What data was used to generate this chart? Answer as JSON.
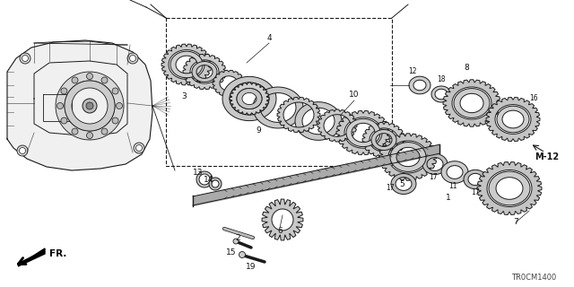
{
  "bg_color": "#ffffff",
  "diagram_code": "TR0CM1400",
  "line_color": "#1a1a1a",
  "text_color": "#111111",
  "gear_fill": "#d8d8d8",
  "gear_edge": "#222222",
  "shaft_fill": "#aaaaaa",
  "housing_fill": "#e8e8e8"
}
